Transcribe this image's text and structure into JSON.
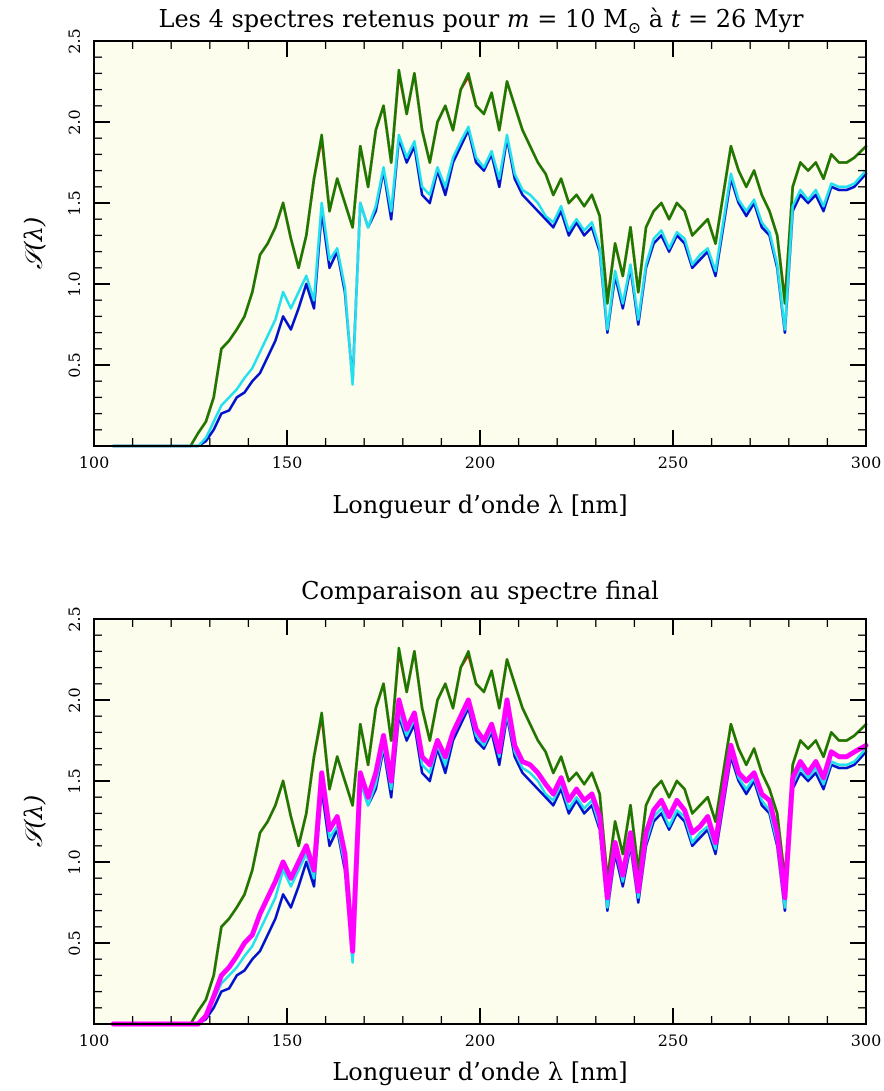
{
  "colors": {
    "background": "#fdfdee",
    "frame": "#000000"
  },
  "chart_data": [
    {
      "type": "line",
      "title_parts": [
        "Les 4 spectres retenus pour ",
        "m",
        " = 10 M",
        "⊙",
        " à ",
        "t",
        " = 26 Myr"
      ],
      "xlabel": "Longueur d’onde λ    [nm]",
      "ylabel": "𝒮(λ)",
      "xlim": [
        100,
        300
      ],
      "ylim": [
        0,
        2.5
      ],
      "xticks": [
        100,
        150,
        200,
        250,
        300
      ],
      "xtick_labels": [
        "100",
        "150",
        "200",
        "250",
        "300"
      ],
      "yticks": [
        0.5,
        1.0,
        1.5,
        2.0,
        2.5
      ],
      "ytick_labels": [
        "0.5",
        "1.0",
        "1.5",
        "2.0",
        "2.5"
      ],
      "x": [
        105,
        125,
        127,
        129,
        131,
        133,
        135,
        137,
        139,
        141,
        143,
        145,
        147,
        149,
        151,
        153,
        155,
        157,
        159,
        161,
        163,
        165,
        167,
        169,
        171,
        173,
        175,
        177,
        179,
        181,
        183,
        185,
        187,
        189,
        191,
        193,
        195,
        197,
        199,
        201,
        203,
        205,
        207,
        209,
        211,
        213,
        215,
        217,
        219,
        221,
        223,
        225,
        227,
        229,
        231,
        233,
        235,
        237,
        239,
        241,
        243,
        245,
        247,
        249,
        251,
        253,
        255,
        257,
        259,
        261,
        263,
        265,
        267,
        269,
        271,
        273,
        275,
        277,
        279,
        281,
        283,
        285,
        287,
        289,
        291,
        293,
        295,
        297,
        300
      ],
      "series": [
        {
          "color": "#cc1100",
          "values": [
            0.0,
            0.0,
            0.08,
            0.15,
            0.3,
            0.6,
            0.65,
            0.72,
            0.8,
            0.95,
            1.18,
            1.25,
            1.35,
            1.5,
            1.28,
            1.1,
            1.3,
            1.65,
            1.9,
            1.45,
            1.65,
            1.5,
            1.35,
            1.85,
            1.6,
            1.95,
            2.1,
            1.75,
            2.3,
            2.05,
            2.3,
            1.95,
            1.75,
            2.0,
            2.1,
            1.95,
            2.2,
            2.28,
            2.1,
            2.05,
            2.18,
            1.95,
            2.25,
            2.1,
            1.95,
            1.85,
            1.75,
            1.68,
            1.55,
            1.65,
            1.5,
            1.55,
            1.48,
            1.55,
            1.42,
            0.9,
            1.25,
            1.05,
            1.35,
            0.95,
            1.35,
            1.45,
            1.5,
            1.4,
            1.5,
            1.45,
            1.3,
            1.35,
            1.4,
            1.25,
            1.55,
            1.85,
            1.7,
            1.6,
            1.7,
            1.55,
            1.45,
            1.3,
            0.9,
            1.6,
            1.75,
            1.7,
            1.75,
            1.65,
            1.8,
            1.75,
            1.75,
            1.78,
            1.85
          ]
        },
        {
          "color": "#1a7a00",
          "values": [
            0.0,
            0.0,
            0.08,
            0.15,
            0.3,
            0.6,
            0.65,
            0.72,
            0.8,
            0.95,
            1.18,
            1.25,
            1.35,
            1.5,
            1.28,
            1.1,
            1.3,
            1.65,
            1.92,
            1.45,
            1.65,
            1.5,
            1.35,
            1.85,
            1.6,
            1.95,
            2.1,
            1.75,
            2.32,
            2.05,
            2.3,
            1.95,
            1.75,
            2.0,
            2.1,
            1.95,
            2.2,
            2.3,
            2.1,
            2.05,
            2.18,
            1.95,
            2.25,
            2.1,
            1.95,
            1.85,
            1.75,
            1.68,
            1.55,
            1.65,
            1.5,
            1.55,
            1.48,
            1.55,
            1.42,
            0.88,
            1.25,
            1.05,
            1.35,
            0.95,
            1.35,
            1.45,
            1.5,
            1.4,
            1.5,
            1.45,
            1.3,
            1.35,
            1.4,
            1.25,
            1.55,
            1.85,
            1.7,
            1.6,
            1.7,
            1.55,
            1.45,
            1.3,
            0.88,
            1.6,
            1.75,
            1.7,
            1.75,
            1.65,
            1.8,
            1.75,
            1.75,
            1.78,
            1.85
          ]
        },
        {
          "color": "#0011cc",
          "values": [
            0.0,
            0.0,
            0.0,
            0.03,
            0.1,
            0.2,
            0.22,
            0.3,
            0.33,
            0.4,
            0.45,
            0.55,
            0.65,
            0.8,
            0.72,
            0.85,
            1.0,
            0.85,
            1.45,
            1.1,
            1.2,
            0.95,
            0.4,
            1.5,
            1.35,
            1.45,
            1.7,
            1.4,
            1.9,
            1.75,
            1.85,
            1.55,
            1.5,
            1.7,
            1.55,
            1.75,
            1.85,
            1.95,
            1.75,
            1.7,
            1.8,
            1.6,
            1.9,
            1.65,
            1.55,
            1.5,
            1.45,
            1.4,
            1.35,
            1.45,
            1.3,
            1.38,
            1.3,
            1.35,
            1.2,
            0.7,
            1.05,
            0.85,
            1.1,
            0.75,
            1.1,
            1.25,
            1.3,
            1.2,
            1.3,
            1.25,
            1.1,
            1.15,
            1.2,
            1.05,
            1.35,
            1.65,
            1.5,
            1.42,
            1.5,
            1.35,
            1.3,
            1.1,
            0.7,
            1.45,
            1.55,
            1.5,
            1.55,
            1.45,
            1.6,
            1.58,
            1.58,
            1.6,
            1.68
          ]
        },
        {
          "color": "#22e0ee",
          "values": [
            0.0,
            0.0,
            0.0,
            0.05,
            0.15,
            0.25,
            0.3,
            0.35,
            0.42,
            0.48,
            0.58,
            0.68,
            0.78,
            0.95,
            0.85,
            0.95,
            1.05,
            0.9,
            1.5,
            1.15,
            1.22,
            0.98,
            0.38,
            1.5,
            1.35,
            1.48,
            1.72,
            1.45,
            1.92,
            1.78,
            1.88,
            1.6,
            1.55,
            1.72,
            1.6,
            1.78,
            1.88,
            1.97,
            1.78,
            1.72,
            1.82,
            1.65,
            1.92,
            1.68,
            1.58,
            1.55,
            1.5,
            1.42,
            1.38,
            1.48,
            1.33,
            1.4,
            1.33,
            1.38,
            1.22,
            0.72,
            1.08,
            0.88,
            1.12,
            0.78,
            1.12,
            1.28,
            1.33,
            1.22,
            1.32,
            1.28,
            1.12,
            1.18,
            1.22,
            1.08,
            1.38,
            1.68,
            1.52,
            1.45,
            1.52,
            1.38,
            1.32,
            1.12,
            0.72,
            1.48,
            1.58,
            1.52,
            1.58,
            1.48,
            1.62,
            1.6,
            1.6,
            1.62,
            1.7
          ]
        }
      ]
    },
    {
      "type": "line",
      "title_parts": [
        "Comparaison au spectre final"
      ],
      "xlabel": "Longueur d’onde λ    [nm]",
      "ylabel": "𝒮(λ)",
      "xlim": [
        100,
        300
      ],
      "ylim": [
        0,
        2.5
      ],
      "xticks": [
        100,
        150,
        200,
        250,
        300
      ],
      "xtick_labels": [
        "100",
        "150",
        "200",
        "250",
        "300"
      ],
      "yticks": [
        0.5,
        1.0,
        1.5,
        2.0,
        2.5
      ],
      "ytick_labels": [
        "0.5",
        "1.0",
        "1.5",
        "2.0",
        "2.5"
      ],
      "x": [
        105,
        125,
        127,
        129,
        131,
        133,
        135,
        137,
        139,
        141,
        143,
        145,
        147,
        149,
        151,
        153,
        155,
        157,
        159,
        161,
        163,
        165,
        167,
        169,
        171,
        173,
        175,
        177,
        179,
        181,
        183,
        185,
        187,
        189,
        191,
        193,
        195,
        197,
        199,
        201,
        203,
        205,
        207,
        209,
        211,
        213,
        215,
        217,
        219,
        221,
        223,
        225,
        227,
        229,
        231,
        233,
        235,
        237,
        239,
        241,
        243,
        245,
        247,
        249,
        251,
        253,
        255,
        257,
        259,
        261,
        263,
        265,
        267,
        269,
        271,
        273,
        275,
        277,
        279,
        281,
        283,
        285,
        287,
        289,
        291,
        293,
        295,
        297,
        300
      ],
      "series": [
        {
          "color": "#cc1100",
          "values": [
            0.0,
            0.0,
            0.08,
            0.15,
            0.3,
            0.6,
            0.65,
            0.72,
            0.8,
            0.95,
            1.18,
            1.25,
            1.35,
            1.5,
            1.28,
            1.1,
            1.3,
            1.65,
            1.9,
            1.45,
            1.65,
            1.5,
            1.35,
            1.85,
            1.6,
            1.95,
            2.1,
            1.75,
            2.3,
            2.05,
            2.3,
            1.95,
            1.75,
            2.0,
            2.1,
            1.95,
            2.2,
            2.28,
            2.1,
            2.05,
            2.18,
            1.95,
            2.25,
            2.1,
            1.95,
            1.85,
            1.75,
            1.68,
            1.55,
            1.65,
            1.5,
            1.55,
            1.48,
            1.55,
            1.42,
            0.9,
            1.25,
            1.05,
            1.35,
            0.95,
            1.35,
            1.45,
            1.5,
            1.4,
            1.5,
            1.45,
            1.3,
            1.35,
            1.4,
            1.25,
            1.55,
            1.85,
            1.7,
            1.6,
            1.7,
            1.55,
            1.45,
            1.3,
            0.9,
            1.6,
            1.75,
            1.7,
            1.75,
            1.65,
            1.8,
            1.75,
            1.75,
            1.78,
            1.85
          ]
        },
        {
          "color": "#1a7a00",
          "values": [
            0.0,
            0.0,
            0.08,
            0.15,
            0.3,
            0.6,
            0.65,
            0.72,
            0.8,
            0.95,
            1.18,
            1.25,
            1.35,
            1.5,
            1.28,
            1.1,
            1.3,
            1.65,
            1.92,
            1.45,
            1.65,
            1.5,
            1.35,
            1.85,
            1.6,
            1.95,
            2.1,
            1.75,
            2.32,
            2.05,
            2.3,
            1.95,
            1.75,
            2.0,
            2.1,
            1.95,
            2.2,
            2.3,
            2.1,
            2.05,
            2.18,
            1.95,
            2.25,
            2.1,
            1.95,
            1.85,
            1.75,
            1.68,
            1.55,
            1.65,
            1.5,
            1.55,
            1.48,
            1.55,
            1.42,
            0.88,
            1.25,
            1.05,
            1.35,
            0.95,
            1.35,
            1.45,
            1.5,
            1.4,
            1.5,
            1.45,
            1.3,
            1.35,
            1.4,
            1.25,
            1.55,
            1.85,
            1.7,
            1.6,
            1.7,
            1.55,
            1.45,
            1.3,
            0.88,
            1.6,
            1.75,
            1.7,
            1.75,
            1.65,
            1.8,
            1.75,
            1.75,
            1.78,
            1.85
          ]
        },
        {
          "color": "#0011cc",
          "values": [
            0.0,
            0.0,
            0.0,
            0.03,
            0.1,
            0.2,
            0.22,
            0.3,
            0.33,
            0.4,
            0.45,
            0.55,
            0.65,
            0.8,
            0.72,
            0.85,
            1.0,
            0.85,
            1.45,
            1.1,
            1.2,
            0.95,
            0.4,
            1.5,
            1.35,
            1.45,
            1.7,
            1.4,
            1.9,
            1.75,
            1.85,
            1.55,
            1.5,
            1.7,
            1.55,
            1.75,
            1.85,
            1.95,
            1.75,
            1.7,
            1.8,
            1.6,
            1.9,
            1.65,
            1.55,
            1.5,
            1.45,
            1.4,
            1.35,
            1.45,
            1.3,
            1.38,
            1.3,
            1.35,
            1.2,
            0.7,
            1.05,
            0.85,
            1.1,
            0.75,
            1.1,
            1.25,
            1.3,
            1.2,
            1.3,
            1.25,
            1.1,
            1.15,
            1.2,
            1.05,
            1.35,
            1.65,
            1.5,
            1.42,
            1.5,
            1.35,
            1.3,
            1.1,
            0.7,
            1.45,
            1.55,
            1.5,
            1.55,
            1.45,
            1.6,
            1.58,
            1.58,
            1.6,
            1.68
          ]
        },
        {
          "color": "#22e0ee",
          "values": [
            0.0,
            0.0,
            0.0,
            0.05,
            0.15,
            0.25,
            0.3,
            0.35,
            0.42,
            0.48,
            0.58,
            0.68,
            0.78,
            0.95,
            0.85,
            0.95,
            1.05,
            0.9,
            1.5,
            1.15,
            1.22,
            0.98,
            0.38,
            1.5,
            1.35,
            1.48,
            1.72,
            1.45,
            1.92,
            1.78,
            1.88,
            1.6,
            1.55,
            1.72,
            1.6,
            1.78,
            1.88,
            1.97,
            1.78,
            1.72,
            1.82,
            1.65,
            1.92,
            1.68,
            1.58,
            1.55,
            1.5,
            1.42,
            1.38,
            1.48,
            1.33,
            1.4,
            1.33,
            1.38,
            1.22,
            0.72,
            1.08,
            0.88,
            1.12,
            0.78,
            1.12,
            1.28,
            1.33,
            1.22,
            1.32,
            1.28,
            1.12,
            1.18,
            1.22,
            1.08,
            1.38,
            1.68,
            1.52,
            1.45,
            1.52,
            1.38,
            1.32,
            1.12,
            0.72,
            1.48,
            1.58,
            1.52,
            1.58,
            1.48,
            1.62,
            1.6,
            1.6,
            1.62,
            1.7
          ]
        },
        {
          "color": "#ff00ff",
          "thick": true,
          "values": [
            0.0,
            0.0,
            0.0,
            0.05,
            0.17,
            0.3,
            0.35,
            0.42,
            0.5,
            0.55,
            0.68,
            0.78,
            0.88,
            1.0,
            0.9,
            1.0,
            1.1,
            0.95,
            1.55,
            1.2,
            1.28,
            1.05,
            0.45,
            1.55,
            1.4,
            1.55,
            1.78,
            1.5,
            2.0,
            1.82,
            1.92,
            1.65,
            1.6,
            1.75,
            1.65,
            1.8,
            1.9,
            2.0,
            1.82,
            1.75,
            1.85,
            1.68,
            2.0,
            1.72,
            1.62,
            1.6,
            1.55,
            1.48,
            1.42,
            1.52,
            1.38,
            1.45,
            1.38,
            1.42,
            1.28,
            0.78,
            1.12,
            0.92,
            1.18,
            0.82,
            1.18,
            1.32,
            1.38,
            1.28,
            1.38,
            1.32,
            1.18,
            1.22,
            1.28,
            1.12,
            1.42,
            1.72,
            1.55,
            1.5,
            1.55,
            1.42,
            1.38,
            1.18,
            0.78,
            1.52,
            1.62,
            1.55,
            1.62,
            1.52,
            1.68,
            1.65,
            1.65,
            1.68,
            1.72
          ]
        }
      ]
    }
  ]
}
